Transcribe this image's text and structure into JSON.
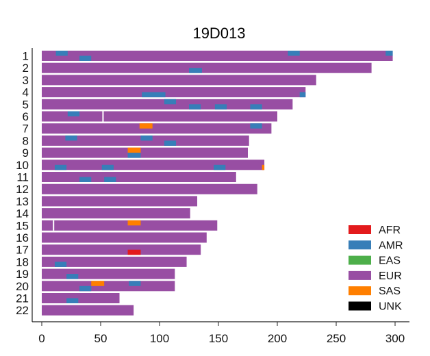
{
  "chart_data": {
    "type": "bar",
    "title": "19D013",
    "xlabel": "",
    "ylabel": "",
    "xlim": [
      0,
      300
    ],
    "xticks": [
      0,
      50,
      100,
      150,
      200,
      250,
      300
    ],
    "legend_position": "bottom-right",
    "grid": false,
    "colors": {
      "AFR": "#e31a1c",
      "AMR": "#377eb8",
      "EAS": "#4daf4a",
      "EUR": "#984ea3",
      "SAS": "#ff7f00",
      "UNK": "#000000"
    },
    "legend": [
      "AFR",
      "AMR",
      "EAS",
      "EUR",
      "SAS",
      "UNK"
    ],
    "chromosomes": [
      {
        "label": "1",
        "length": 298,
        "gaps": [],
        "segments": [
          {
            "pop": "AMR",
            "start": 12,
            "end": 22,
            "hap": 0
          },
          {
            "pop": "AMR",
            "start": 32,
            "end": 42,
            "hap": 1
          },
          {
            "pop": "AMR",
            "start": 209,
            "end": 219,
            "hap": 0
          },
          {
            "pop": "AMR",
            "start": 292,
            "end": 298,
            "hap": 0
          }
        ]
      },
      {
        "label": "2",
        "length": 280,
        "gaps": [],
        "segments": [
          {
            "pop": "AMR",
            "start": 125,
            "end": 136,
            "hap": 1
          }
        ]
      },
      {
        "label": "3",
        "length": 233,
        "gaps": [],
        "segments": []
      },
      {
        "label": "4",
        "length": 224,
        "gaps": [],
        "segments": [
          {
            "pop": "AMR",
            "start": 85,
            "end": 105,
            "hap": 1
          },
          {
            "pop": "AMR",
            "start": 219,
            "end": 224,
            "hap": 1
          }
        ]
      },
      {
        "label": "5",
        "length": 213,
        "gaps": [],
        "segments": [
          {
            "pop": "AMR",
            "start": 104,
            "end": 114,
            "hap": 0
          },
          {
            "pop": "AMR",
            "start": 125,
            "end": 135,
            "hap": 1
          },
          {
            "pop": "AMR",
            "start": 147,
            "end": 157,
            "hap": 1
          },
          {
            "pop": "AMR",
            "start": 177,
            "end": 187,
            "hap": 1
          }
        ]
      },
      {
        "label": "6",
        "length": 200,
        "gaps": [
          52
        ],
        "segments": [
          {
            "pop": "AMR",
            "start": 22,
            "end": 32,
            "hap": 0
          }
        ]
      },
      {
        "label": "7",
        "length": 195,
        "gaps": [],
        "segments": [
          {
            "pop": "SAS",
            "start": 83,
            "end": 94,
            "hap": 0
          },
          {
            "pop": "AMR",
            "start": 177,
            "end": 187,
            "hap": 0
          }
        ]
      },
      {
        "label": "8",
        "length": 176,
        "gaps": [],
        "segments": [
          {
            "pop": "AMR",
            "start": 20,
            "end": 30,
            "hap": 0
          },
          {
            "pop": "AMR",
            "start": 84,
            "end": 94,
            "hap": 0
          },
          {
            "pop": "AMR",
            "start": 104,
            "end": 114,
            "hap": 1
          }
        ]
      },
      {
        "label": "9",
        "length": 175,
        "gaps": [],
        "segments": [
          {
            "pop": "SAS",
            "start": 73,
            "end": 84,
            "hap": 0
          },
          {
            "pop": "AMR",
            "start": 73,
            "end": 84,
            "hap": 1
          }
        ]
      },
      {
        "label": "10",
        "length": 189,
        "gaps": [],
        "segments": [
          {
            "pop": "AMR",
            "start": 11,
            "end": 21,
            "hap": 1
          },
          {
            "pop": "AMR",
            "start": 51,
            "end": 61,
            "hap": 1
          },
          {
            "pop": "AMR",
            "start": 146,
            "end": 156,
            "hap": 1
          },
          {
            "pop": "SAS",
            "start": 187,
            "end": 189,
            "hap": 1
          }
        ]
      },
      {
        "label": "11",
        "length": 165,
        "gaps": [],
        "segments": [
          {
            "pop": "AMR",
            "start": 32,
            "end": 42,
            "hap": 1
          },
          {
            "pop": "AMR",
            "start": 53,
            "end": 63,
            "hap": 1
          }
        ]
      },
      {
        "label": "12",
        "length": 183,
        "gaps": [],
        "segments": []
      },
      {
        "label": "13",
        "length": 132,
        "gaps": [],
        "segments": []
      },
      {
        "label": "14",
        "length": 126,
        "gaps": [],
        "segments": []
      },
      {
        "label": "15",
        "length": 149,
        "gaps": [
          10
        ],
        "segments": [
          {
            "pop": "SAS",
            "start": 73,
            "end": 84,
            "hap": 0
          }
        ]
      },
      {
        "label": "16",
        "length": 140,
        "gaps": [],
        "segments": []
      },
      {
        "label": "17",
        "length": 135,
        "gaps": [],
        "segments": [
          {
            "pop": "AFR",
            "start": 73,
            "end": 84,
            "hap": 1
          }
        ]
      },
      {
        "label": "18",
        "length": 123,
        "gaps": [],
        "segments": [
          {
            "pop": "AMR",
            "start": 11,
            "end": 21,
            "hap": 1
          }
        ]
      },
      {
        "label": "19",
        "length": 113,
        "gaps": [],
        "segments": [
          {
            "pop": "AMR",
            "start": 21,
            "end": 31,
            "hap": 1
          }
        ]
      },
      {
        "label": "20",
        "length": 113,
        "gaps": [],
        "segments": [
          {
            "pop": "SAS",
            "start": 42,
            "end": 53,
            "hap": 0
          },
          {
            "pop": "AMR",
            "start": 74,
            "end": 84,
            "hap": 0
          },
          {
            "pop": "AMR",
            "start": 32,
            "end": 42,
            "hap": 1
          }
        ]
      },
      {
        "label": "21",
        "length": 66,
        "gaps": [],
        "segments": [
          {
            "pop": "AMR",
            "start": 21,
            "end": 31,
            "hap": 1
          }
        ]
      },
      {
        "label": "22",
        "length": 78,
        "gaps": [],
        "segments": []
      }
    ]
  }
}
